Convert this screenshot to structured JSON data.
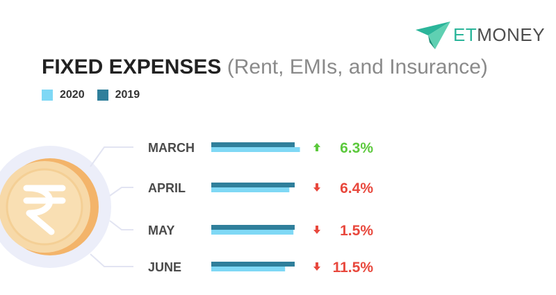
{
  "brand": {
    "name_part1": "ET",
    "name_part2": "MONEY"
  },
  "title": {
    "main": "FIXED EXPENSES",
    "sub": "(Rent, EMIs, and Insurance)"
  },
  "colors": {
    "series_2020": "#7fd8f5",
    "series_2019": "#2f7f9b",
    "increase": "#5cc93d",
    "decrease": "#e8483d",
    "coin": "#f7d9a8",
    "coin_edge": "#f3b46a",
    "halo": "#eceef9"
  },
  "icons": {
    "brand": "paper-plane-icon",
    "coin": "rupee-coin-icon",
    "up": "arrow-up-icon",
    "down": "arrow-down-icon"
  },
  "chart_data": {
    "type": "bar",
    "orientation": "horizontal",
    "title": "FIXED EXPENSES",
    "subtitle": "(Rent, EMIs, and Insurance)",
    "legend": [
      "2020",
      "2019"
    ],
    "legend_position": "top-left",
    "categories": [
      "MARCH",
      "APRIL",
      "MAY",
      "JUNE"
    ],
    "series": [
      {
        "name": "2019",
        "values": [
          100,
          100,
          100,
          100
        ]
      },
      {
        "name": "2020",
        "values": [
          106.3,
          93.6,
          98.5,
          88.5
        ]
      }
    ],
    "changes": [
      {
        "label": "6.3%",
        "direction": "up"
      },
      {
        "label": "6.4%",
        "direction": "down"
      },
      {
        "label": "1.5%",
        "direction": "down"
      },
      {
        "label": "11.5%",
        "direction": "down"
      }
    ],
    "grid": false
  }
}
